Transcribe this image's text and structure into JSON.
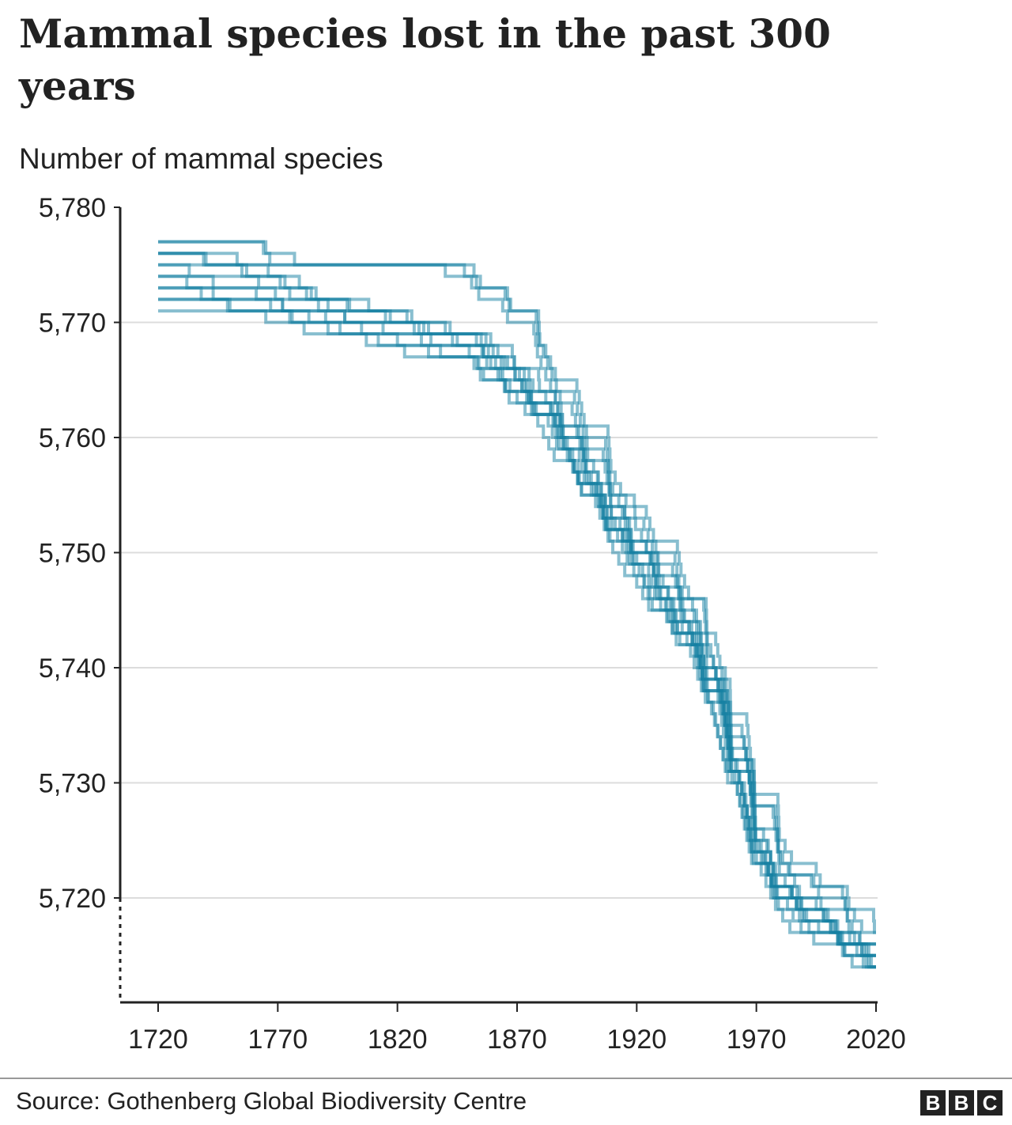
{
  "chart_data": {
    "type": "line",
    "title": "Mammal species lost in the past 300 years",
    "ylabel": "Number of mammal species",
    "xlabel": "",
    "source": "Source: Gothenberg Global Biodiversity Centre",
    "xlim": [
      1720,
      2020
    ],
    "ylim": [
      5711,
      5780
    ],
    "y_axis_break": true,
    "grid": "horizontal",
    "line_style": "step",
    "line_color": "#1380A1",
    "x_ticks": [
      "1720",
      "1770",
      "1820",
      "1870",
      "1920",
      "1970",
      "2020"
    ],
    "x_tick_values": [
      1720,
      1770,
      1820,
      1870,
      1920,
      1970,
      2020
    ],
    "y_ticks": [
      "5,780",
      "5,770",
      "5,760",
      "5,750",
      "5,740",
      "5,730",
      "5,720"
    ],
    "y_tick_values": [
      5780,
      5770,
      5760,
      5750,
      5740,
      5730,
      5720
    ],
    "x": [
      1720,
      1730,
      1740,
      1750,
      1760,
      1770,
      1780,
      1790,
      1800,
      1810,
      1820,
      1830,
      1840,
      1850,
      1860,
      1870,
      1880,
      1890,
      1900,
      1910,
      1920,
      1930,
      1940,
      1950,
      1960,
      1970,
      1980,
      1990,
      2000,
      2010,
      2020
    ],
    "series": [
      {
        "values": [
          5777,
          5777,
          5777,
          5777,
          5777,
          5775,
          5775,
          5775,
          5775,
          5775,
          5775,
          5775,
          5775,
          5775,
          5773,
          5771,
          5768,
          5764,
          5760,
          5756,
          5753,
          5750,
          5746,
          5741,
          5734,
          5728,
          5724,
          5722,
          5720,
          5718,
          5716
        ]
      },
      {
        "values": [
          5771,
          5771,
          5771,
          5771,
          5771,
          5771,
          5770,
          5770,
          5769,
          5769,
          5769,
          5768,
          5767,
          5767,
          5766,
          5764,
          5762,
          5759,
          5756,
          5752,
          5748,
          5745,
          5742,
          5737,
          5730,
          5723,
          5719,
          5717,
          5717,
          5715,
          5714
        ]
      },
      {
        "values": [
          5774,
          5774,
          5774,
          5773,
          5773,
          5772,
          5771,
          5771,
          5770,
          5770,
          5770,
          5769,
          5769,
          5768,
          5767,
          5765,
          5763,
          5760,
          5757,
          5754,
          5750,
          5747,
          5744,
          5739,
          5732,
          5725,
          5721,
          5719,
          5718,
          5716,
          5715
        ]
      },
      {
        "values": [
          5776,
          5776,
          5776,
          5775,
          5775,
          5774,
          5773,
          5772,
          5772,
          5771,
          5771,
          5770,
          5770,
          5769,
          5767,
          5766,
          5764,
          5761,
          5758,
          5753,
          5751,
          5748,
          5745,
          5740,
          5733,
          5726,
          5722,
          5720,
          5719,
          5717,
          5716
        ]
      },
      {
        "values": [
          5772,
          5772,
          5772,
          5772,
          5771,
          5771,
          5770,
          5770,
          5770,
          5769,
          5769,
          5769,
          5768,
          5768,
          5766,
          5764,
          5762,
          5759,
          5755,
          5751,
          5749,
          5746,
          5743,
          5738,
          5731,
          5724,
          5720,
          5718,
          5717,
          5715,
          5714
        ]
      },
      {
        "values": [
          5775,
          5775,
          5775,
          5775,
          5774,
          5774,
          5773,
          5772,
          5771,
          5771,
          5770,
          5770,
          5769,
          5769,
          5768,
          5766,
          5764,
          5761,
          5758,
          5754,
          5751,
          5748,
          5745,
          5740,
          5733,
          5726,
          5722,
          5719,
          5718,
          5716,
          5715
        ]
      },
      {
        "values": [
          5773,
          5773,
          5772,
          5772,
          5772,
          5771,
          5771,
          5770,
          5769,
          5769,
          5768,
          5768,
          5767,
          5767,
          5765,
          5764,
          5762,
          5759,
          5756,
          5752,
          5749,
          5746,
          5743,
          5738,
          5731,
          5724,
          5720,
          5718,
          5717,
          5716,
          5714
        ]
      },
      {
        "values": [
          5777,
          5777,
          5777,
          5777,
          5777,
          5776,
          5775,
          5775,
          5775,
          5775,
          5775,
          5775,
          5775,
          5774,
          5772,
          5770,
          5767,
          5763,
          5759,
          5755,
          5752,
          5749,
          5746,
          5742,
          5735,
          5728,
          5724,
          5722,
          5721,
          5719,
          5717
        ]
      },
      {
        "values": [
          5774,
          5774,
          5773,
          5773,
          5773,
          5772,
          5772,
          5771,
          5770,
          5770,
          5770,
          5769,
          5769,
          5768,
          5767,
          5765,
          5763,
          5760,
          5756,
          5752,
          5750,
          5746,
          5743,
          5738,
          5731,
          5724,
          5720,
          5719,
          5718,
          5716,
          5715
        ]
      },
      {
        "values": [
          5776,
          5776,
          5775,
          5775,
          5774,
          5774,
          5773,
          5772,
          5772,
          5771,
          5771,
          5770,
          5770,
          5769,
          5768,
          5766,
          5763,
          5760,
          5757,
          5753,
          5750,
          5747,
          5744,
          5739,
          5732,
          5725,
          5721,
          5720,
          5719,
          5717,
          5716
        ]
      },
      {
        "values": [
          5772,
          5772,
          5772,
          5771,
          5771,
          5770,
          5770,
          5769,
          5769,
          5768,
          5768,
          5767,
          5767,
          5767,
          5765,
          5763,
          5761,
          5758,
          5755,
          5751,
          5748,
          5745,
          5742,
          5737,
          5730,
          5723,
          5719,
          5717,
          5716,
          5715,
          5714
        ]
      },
      {
        "values": [
          5775,
          5775,
          5774,
          5774,
          5774,
          5773,
          5772,
          5772,
          5771,
          5771,
          5770,
          5770,
          5769,
          5769,
          5768,
          5766,
          5764,
          5760,
          5757,
          5753,
          5750,
          5747,
          5744,
          5739,
          5732,
          5725,
          5721,
          5719,
          5718,
          5716,
          5715
        ]
      },
      {
        "values": [
          5773,
          5773,
          5773,
          5772,
          5772,
          5772,
          5771,
          5771,
          5770,
          5770,
          5769,
          5769,
          5768,
          5768,
          5766,
          5765,
          5762,
          5759,
          5756,
          5752,
          5749,
          5746,
          5743,
          5738,
          5731,
          5724,
          5721,
          5719,
          5718,
          5716,
          5714
        ]
      },
      {
        "values": [
          5776,
          5776,
          5776,
          5776,
          5775,
          5775,
          5775,
          5775,
          5775,
          5775,
          5775,
          5775,
          5775,
          5774,
          5773,
          5771,
          5768,
          5765,
          5761,
          5757,
          5754,
          5751,
          5748,
          5743,
          5736,
          5729,
          5725,
          5723,
          5721,
          5719,
          5717
        ]
      }
    ]
  },
  "branding": {
    "logo": "BBC"
  }
}
